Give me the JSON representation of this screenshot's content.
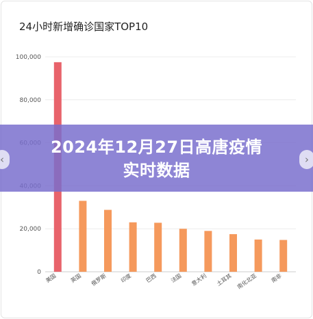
{
  "chart_data": {
    "type": "bar",
    "title": "24小时新增确诊国家TOP10",
    "categories": [
      "美国",
      "英国",
      "俄罗斯",
      "印度",
      "巴西",
      "法国",
      "意大利",
      "土耳其",
      "南化北亚",
      "南非"
    ],
    "values": [
      97500,
      33000,
      28800,
      23000,
      22800,
      20000,
      19000,
      17500,
      15000,
      14800
    ],
    "ylim": [
      0,
      100000
    ],
    "yticks": [
      0,
      20000,
      40000,
      60000,
      80000,
      100000
    ],
    "ytick_labels": [
      "0",
      "20,000",
      "40,000",
      "60,000",
      "80,000",
      "100,000"
    ],
    "grid": true,
    "colors": {
      "highlight": "#e8636b",
      "bar": "#f5995c",
      "axis": "#cccccc",
      "grid": "#ececec"
    }
  },
  "banner": {
    "line1": "2024年12月27日高唐疫情",
    "line2": "实时数据"
  },
  "nav": {
    "prev_icon": "chevron-left-icon",
    "next_icon": "chevron-right-icon",
    "prev_glyph": "‹",
    "next_glyph": "›"
  }
}
